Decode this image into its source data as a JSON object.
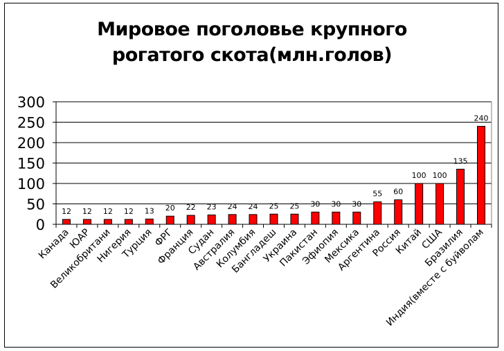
{
  "chart_data": {
    "type": "bar",
    "title_lines": [
      "Мировое поголовье крупного",
      "рогатого скота(млн.голов)"
    ],
    "categories": [
      "Канада",
      "ЮАР",
      "Великобритани",
      "Нигерия",
      "Турция",
      "ФРГ",
      "Франция",
      "Судан",
      "Австралия",
      "Колумбия",
      "Бангладеш",
      "Украина",
      "Пакистан",
      "Эфиопия",
      "Мексика",
      "Аргентина",
      "Россия",
      "Китай",
      "США",
      "Бразилия",
      "Индия(вместе с буйволам"
    ],
    "values": [
      12,
      12,
      12,
      12,
      13,
      20,
      22,
      23,
      24,
      24,
      25,
      25,
      30,
      30,
      30,
      55,
      60,
      100,
      100,
      135,
      240
    ],
    "ylim": [
      0,
      300
    ],
    "yticks": [
      0,
      50,
      100,
      150,
      200,
      250,
      300
    ],
    "grid": true,
    "bar_color": "#ff0000",
    "bar_edge_color": "#000000"
  }
}
